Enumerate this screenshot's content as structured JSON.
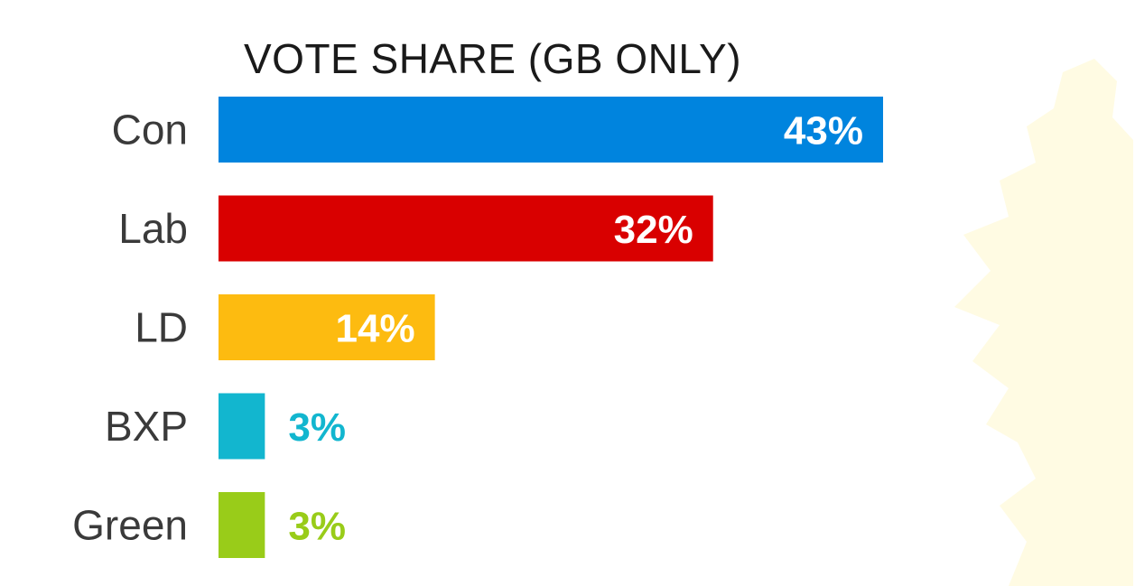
{
  "chart_data": {
    "type": "bar",
    "orientation": "horizontal",
    "title": "VOTE SHARE (GB ONLY)",
    "categories": [
      "Con",
      "Lab",
      "LD",
      "BXP",
      "Green"
    ],
    "values": [
      43,
      32,
      14,
      3,
      3
    ],
    "value_labels": [
      "43%",
      "32%",
      "14%",
      "3%",
      "3%"
    ],
    "unit": "%",
    "colors": [
      "#0084DE",
      "#D90000",
      "#FDBB10",
      "#12B6CF",
      "#99CC19"
    ],
    "label_color_inside": "#FFFFFF",
    "xlim": [
      0,
      43
    ],
    "grid": false,
    "legend": "none"
  }
}
